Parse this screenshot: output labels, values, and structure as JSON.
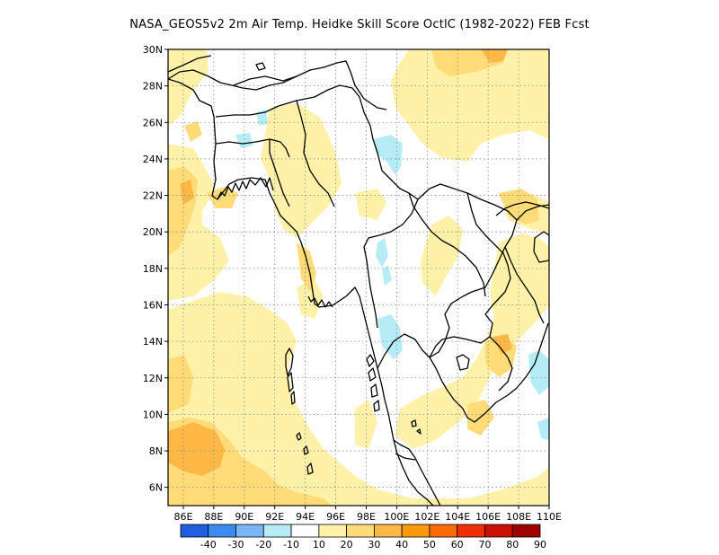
{
  "title": "NASA_GEOS5v2  2m Air Temp. Heidke Skill Score OctlC (1982-2022) FEB Fcst",
  "map": {
    "lon_range": [
      85,
      110
    ],
    "lat_range": [
      5,
      30
    ],
    "lon_ticks": [
      "86E",
      "88E",
      "90E",
      "92E",
      "94E",
      "96E",
      "98E",
      "100E",
      "102E",
      "104E",
      "106E",
      "108E",
      "110E"
    ],
    "lat_ticks": [
      "6N",
      "8N",
      "10N",
      "12N",
      "14N",
      "16N",
      "18N",
      "20N",
      "22N",
      "24N",
      "26N",
      "28N",
      "30N"
    ],
    "grid": "dotted"
  },
  "colorbar": {
    "labels": [
      "-40",
      "-30",
      "-20",
      "-10",
      "10",
      "20",
      "30",
      "40",
      "50",
      "60",
      "70",
      "80",
      "90"
    ],
    "colors": [
      "#1f5fe0",
      "#3a8cf0",
      "#78b6f5",
      "#b6ecf5",
      "#ffffff",
      "#fff2a8",
      "#ffdc78",
      "#ffb846",
      "#ff9a10",
      "#ff6a00",
      "#f02e00",
      "#cc1000",
      "#a00000"
    ]
  }
}
